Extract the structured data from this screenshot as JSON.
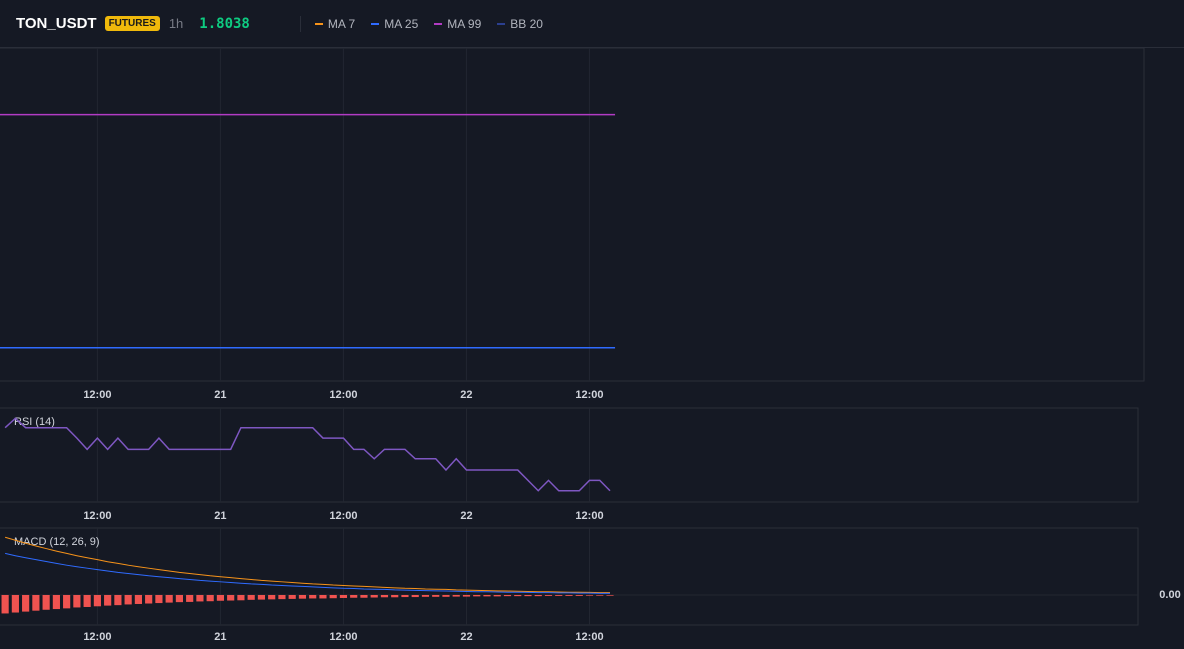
{
  "header": {
    "symbol": "TON_USDT",
    "badge": "FUTURES",
    "interval": "1h",
    "price": "1.8038",
    "legend": [
      {
        "label": "MA 7",
        "color": "#f7931a"
      },
      {
        "label": "MA 25",
        "color": "#2f6bff"
      },
      {
        "label": "MA 99",
        "color": "#b23bc4"
      },
      {
        "label": "BB 20",
        "color": "#2b3f8f"
      }
    ]
  },
  "chart_data": [
    {
      "type": "line",
      "xlim": [
        2.5,
        114.1
      ],
      "ylim": [
        1.7,
        2.0
      ],
      "xticks": [
        {
          "value": 12,
          "label": "12:00"
        },
        {
          "value": 24,
          "label": "21"
        },
        {
          "value": 36,
          "label": "12:00"
        },
        {
          "value": 48,
          "label": "22"
        },
        {
          "value": 60,
          "label": "12:00"
        }
      ],
      "x": [
        2.5,
        62.5
      ],
      "series": [
        {
          "color": "#b23bc4",
          "values": [
            1.94,
            1.94
          ]
        },
        {
          "color": "#2f6bff",
          "values": [
            1.73,
            1.73
          ]
        }
      ]
    },
    {
      "type": "line",
      "title": "RSI (14)",
      "xlim": [
        2.5,
        113.5
      ],
      "ylim": [
        0,
        100
      ],
      "xticks": [
        {
          "value": 12,
          "label": "12:00"
        },
        {
          "value": 24,
          "label": "21"
        },
        {
          "value": 36,
          "label": "12:00"
        },
        {
          "value": 48,
          "label": "22"
        },
        {
          "value": 60,
          "label": "12:00"
        }
      ],
      "x": [
        3,
        4,
        5,
        6,
        7,
        8,
        9,
        10,
        11,
        12,
        13,
        14,
        15,
        16,
        17,
        18,
        19,
        20,
        21,
        22,
        23,
        24,
        25,
        26,
        27,
        28,
        29,
        30,
        31,
        32,
        33,
        34,
        35,
        36,
        37,
        38,
        39,
        40,
        41,
        42,
        43,
        44,
        45,
        46,
        47,
        48,
        49,
        50,
        51,
        52,
        53,
        54,
        55,
        56,
        57,
        58,
        59,
        60,
        61,
        62
      ],
      "series": [
        {
          "color": "#7e57c2",
          "values": [
            79,
            89,
            79,
            79,
            79,
            79,
            79,
            68,
            56,
            68,
            56,
            68,
            56,
            56,
            56,
            68,
            56,
            56,
            56,
            56,
            56,
            56,
            56,
            79,
            79,
            79,
            79,
            79,
            79,
            79,
            79,
            68,
            68,
            68,
            56,
            56,
            46,
            56,
            56,
            56,
            46,
            46,
            46,
            34,
            46,
            34,
            34,
            34,
            34,
            34,
            34,
            23,
            12,
            23,
            12,
            12,
            12,
            23,
            23,
            12
          ]
        }
      ]
    },
    {
      "type": "combo",
      "title": "MACD (12, 26, 9)",
      "xlim": [
        2.5,
        113.5
      ],
      "ylim": [
        -0.013,
        0.029
      ],
      "xticks": [
        {
          "value": 12,
          "label": "12:00"
        },
        {
          "value": 24,
          "label": "21"
        },
        {
          "value": 36,
          "label": "12:00"
        },
        {
          "value": 48,
          "label": "22"
        },
        {
          "value": 60,
          "label": "12:00"
        }
      ],
      "yticks": [
        {
          "value": 0,
          "label": "0.00"
        }
      ],
      "x": [
        3,
        4,
        5,
        6,
        7,
        8,
        9,
        10,
        11,
        12,
        13,
        14,
        15,
        16,
        17,
        18,
        19,
        20,
        21,
        22,
        23,
        24,
        25,
        26,
        27,
        28,
        29,
        30,
        31,
        32,
        33,
        34,
        35,
        36,
        37,
        38,
        39,
        40,
        41,
        42,
        43,
        44,
        45,
        46,
        47,
        48,
        49,
        50,
        51,
        52,
        53,
        54,
        55,
        56,
        57,
        58,
        59,
        60,
        61,
        62
      ],
      "series": [
        {
          "type": "bar",
          "color": "#f05350",
          "values": [
            -0.008,
            -0.0076,
            -0.0072,
            -0.0068,
            -0.0064,
            -0.0061,
            -0.0058,
            -0.0054,
            -0.0052,
            -0.0049,
            -0.0046,
            -0.0044,
            -0.0041,
            -0.0039,
            -0.0037,
            -0.0035,
            -0.0033,
            -0.0031,
            -0.003,
            -0.0028,
            -0.0027,
            -0.0025,
            -0.0024,
            -0.0023,
            -0.0021,
            -0.002,
            -0.0019,
            -0.0018,
            -0.0017,
            -0.0016,
            -0.0015,
            -0.0015,
            -0.0014,
            -0.0013,
            -0.0012,
            -0.0012,
            -0.0011,
            -0.001,
            -0.001,
            -0.0009,
            -0.0009,
            -0.0008,
            -0.0008,
            -0.0008,
            -0.0007,
            -0.0007,
            -0.0006,
            -0.0006,
            -0.0006,
            -0.0005,
            -0.0005,
            -0.0005,
            -0.0005,
            -0.0004,
            -0.0004,
            -0.0004,
            -0.0004,
            -0.0003,
            -0.0003,
            -0.0003
          ]
        },
        {
          "type": "line",
          "color": "#f7931a",
          "values": [
            0.025,
            0.0237,
            0.0224,
            0.0212,
            0.0201,
            0.019,
            0.018,
            0.017,
            0.0161,
            0.0153,
            0.0144,
            0.0137,
            0.0129,
            0.0122,
            0.0116,
            0.011,
            0.0104,
            0.0098,
            0.0093,
            0.0088,
            0.0083,
            0.0079,
            0.0075,
            0.0071,
            0.0067,
            0.0063,
            0.006,
            0.0057,
            0.0054,
            0.0051,
            0.0048,
            0.0046,
            0.0043,
            0.0041,
            0.0039,
            0.0037,
            0.0035,
            0.0033,
            0.0031,
            0.0029,
            0.0028,
            0.0026,
            0.0025,
            0.0024,
            0.0022,
            0.0021,
            0.002,
            0.0019,
            0.0018,
            0.0017,
            0.0016,
            0.0015,
            0.0014,
            0.0014,
            0.0013,
            0.0012,
            0.0012,
            0.0011,
            0.001,
            0.001
          ]
        },
        {
          "type": "line",
          "color": "#2f6bff",
          "values": [
            0.018,
            0.017,
            0.0161,
            0.0153,
            0.0145,
            0.0137,
            0.0129,
            0.0122,
            0.0116,
            0.011,
            0.0104,
            0.0098,
            0.0093,
            0.0088,
            0.0083,
            0.0079,
            0.0075,
            0.0071,
            0.0067,
            0.0063,
            0.006,
            0.0057,
            0.0054,
            0.0051,
            0.0048,
            0.0046,
            0.0043,
            0.0041,
            0.0039,
            0.0037,
            0.0035,
            0.0033,
            0.0031,
            0.0029,
            0.0028,
            0.0026,
            0.0025,
            0.0024,
            0.0022,
            0.0021,
            0.002,
            0.0019,
            0.0018,
            0.0017,
            0.0016,
            0.0015,
            0.0014,
            0.0014,
            0.0013,
            0.0012,
            0.0012,
            0.0011,
            0.001,
            0.001,
            0.0009,
            0.0009,
            0.0008,
            0.0008,
            0.0007,
            0.0007
          ]
        }
      ]
    }
  ]
}
